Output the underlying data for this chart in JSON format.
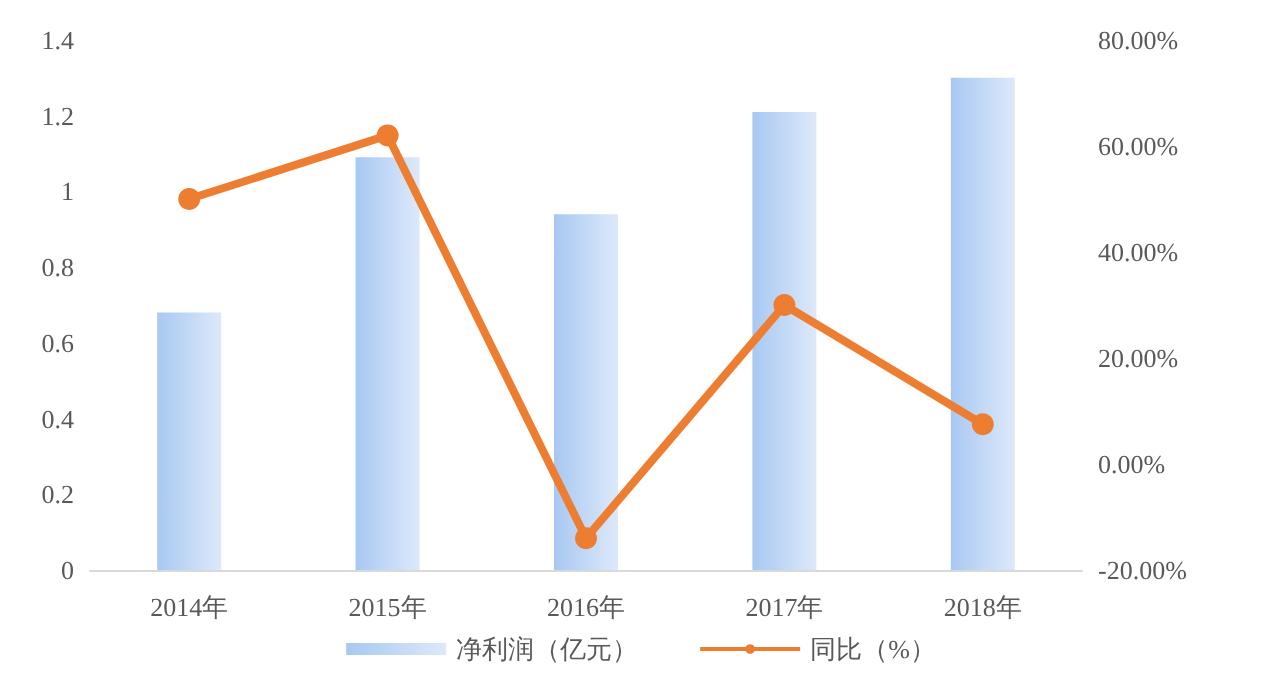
{
  "chart_data": {
    "type": "bar",
    "categories": [
      "2014年",
      "2015年",
      "2016年",
      "2017年",
      "2018年"
    ],
    "series": [
      {
        "name": "净利润（亿元）",
        "color": "#a8c8f2",
        "values": [
          0.68,
          1.09,
          0.94,
          1.21,
          1.3
        ]
      },
      {
        "name": "同比（%）",
        "type": "line",
        "axis": "y2",
        "color": "#ed7d31",
        "marker": "circle",
        "values": [
          50,
          62,
          -14,
          30,
          7.5
        ]
      }
    ],
    "ylim": [
      0,
      1.4
    ],
    "yticks": [
      0,
      0.2,
      0.4,
      0.6,
      0.8,
      1,
      1.2,
      1.4
    ],
    "y2lim": [
      -20,
      80
    ],
    "y2ticks": [
      {
        "value": -20,
        "label": "-20.00%"
      },
      {
        "value": 0,
        "label": "0.00%"
      },
      {
        "value": 20,
        "label": "20.00%"
      },
      {
        "value": 40,
        "label": "40.00%"
      },
      {
        "value": 60,
        "label": "60.00%"
      },
      {
        "value": 80,
        "label": "80.00%"
      }
    ],
    "grid": false,
    "legend": "bottom"
  }
}
